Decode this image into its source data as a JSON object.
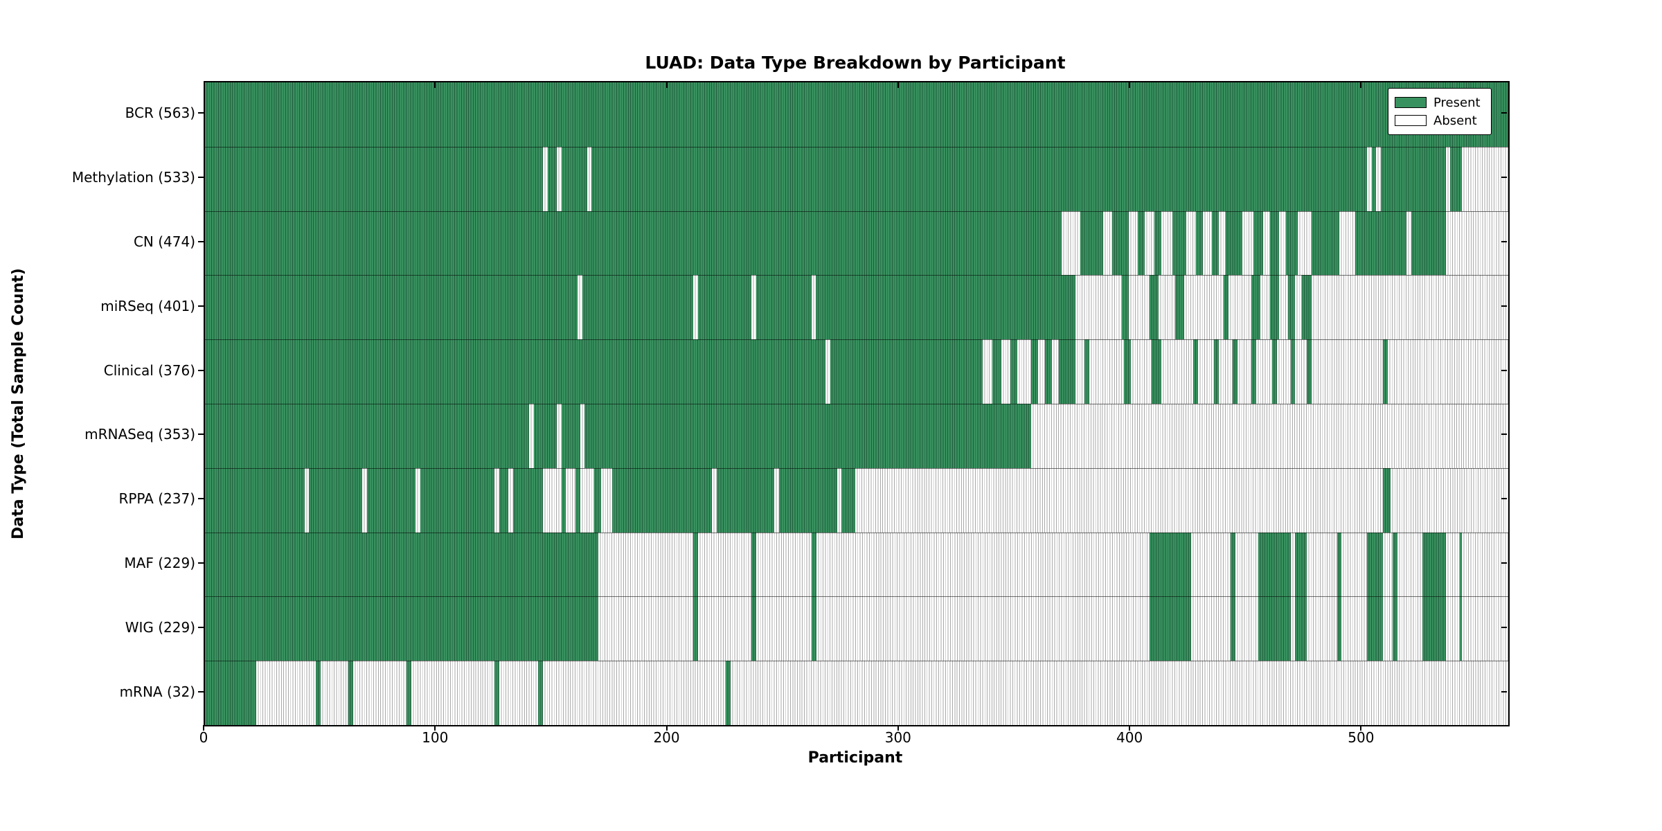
{
  "title": "LUAD: Data Type Breakdown by Participant",
  "x_axis": {
    "label": "Participant",
    "ticks": [
      0,
      100,
      200,
      300,
      400,
      500
    ],
    "min": 0,
    "max": 563
  },
  "y_axis": {
    "label": "Data Type (Total Sample Count)"
  },
  "legend": {
    "items": [
      {
        "label": "Present",
        "color": "#38925f"
      },
      {
        "label": "Absent",
        "color": "#ffffff"
      }
    ]
  },
  "colors": {
    "present_fill": "#38925f",
    "present_edge": "#215c3c",
    "absent_fill": "#ffffff",
    "absent_edge": "#a8a8a8",
    "spine": "#000000",
    "background": "#ffffff"
  },
  "chart_data": {
    "type": "heatmap",
    "title": "LUAD: Data Type Breakdown by Participant",
    "xlabel": "Participant",
    "ylabel": "Data Type (Total Sample Count)",
    "x_range": [
      0,
      563
    ],
    "x_ticks": [
      0,
      100,
      200,
      300,
      400,
      500
    ],
    "n_participants": 563,
    "legend": [
      "Present",
      "Absent"
    ],
    "legend_position": "upper right",
    "rows": [
      {
        "data_type": "BCR",
        "total_samples": 563,
        "tick_label": "BCR (563)",
        "absent_ranges": []
      },
      {
        "data_type": "Methylation",
        "total_samples": 533,
        "tick_label": "Methylation (533)",
        "absent_ranges": [
          [
            146,
            148
          ],
          [
            152,
            154
          ],
          [
            165,
            167
          ],
          [
            502,
            504
          ],
          [
            506,
            508
          ],
          [
            536,
            538
          ],
          [
            543,
            563
          ]
        ]
      },
      {
        "data_type": "CN",
        "total_samples": 474,
        "tick_label": "CN (474)",
        "absent_ranges": [
          [
            370,
            378
          ],
          [
            388,
            392
          ],
          [
            399,
            403
          ],
          [
            406,
            410
          ],
          [
            413,
            418
          ],
          [
            424,
            428
          ],
          [
            431,
            435
          ],
          [
            438,
            441
          ],
          [
            448,
            453
          ],
          [
            457,
            460
          ],
          [
            464,
            467
          ],
          [
            472,
            478
          ],
          [
            490,
            497
          ],
          [
            519,
            521
          ],
          [
            536,
            563
          ]
        ]
      },
      {
        "data_type": "miRSeq",
        "total_samples": 401,
        "tick_label": "miRSeq (401)",
        "absent_ranges": [
          [
            161,
            163
          ],
          [
            211,
            213
          ],
          [
            236,
            238
          ],
          [
            262,
            264
          ],
          [
            376,
            396
          ],
          [
            399,
            408
          ],
          [
            412,
            419
          ],
          [
            423,
            440
          ],
          [
            442,
            452
          ],
          [
            456,
            460
          ],
          [
            464,
            468
          ],
          [
            471,
            474
          ],
          [
            478,
            563
          ]
        ]
      },
      {
        "data_type": "Clinical",
        "total_samples": 376,
        "tick_label": "Clinical (376)",
        "absent_ranges": [
          [
            268,
            270
          ],
          [
            336,
            340
          ],
          [
            344,
            348
          ],
          [
            351,
            357
          ],
          [
            360,
            363
          ],
          [
            366,
            369
          ],
          [
            376,
            380
          ],
          [
            382,
            397
          ],
          [
            400,
            409
          ],
          [
            413,
            427
          ],
          [
            429,
            436
          ],
          [
            438,
            444
          ],
          [
            446,
            452
          ],
          [
            454,
            461
          ],
          [
            463,
            469
          ],
          [
            471,
            476
          ],
          [
            478,
            509
          ],
          [
            511,
            563
          ]
        ]
      },
      {
        "data_type": "mRNASeq",
        "total_samples": 353,
        "tick_label": "mRNASeq (353)",
        "absent_ranges": [
          [
            140,
            142
          ],
          [
            152,
            154
          ],
          [
            162,
            164
          ],
          [
            357,
            563
          ]
        ]
      },
      {
        "data_type": "RPPA",
        "total_samples": 237,
        "tick_label": "RPPA (237)",
        "absent_ranges": [
          [
            43,
            45
          ],
          [
            68,
            70
          ],
          [
            91,
            93
          ],
          [
            125,
            127
          ],
          [
            131,
            133
          ],
          [
            146,
            154
          ],
          [
            156,
            160
          ],
          [
            162,
            168
          ],
          [
            171,
            176
          ],
          [
            219,
            221
          ],
          [
            246,
            248
          ],
          [
            273,
            275
          ],
          [
            281,
            509
          ],
          [
            512,
            563
          ]
        ]
      },
      {
        "data_type": "MAF",
        "total_samples": 229,
        "tick_label": "MAF (229)",
        "absent_ranges": [
          [
            170,
            211
          ],
          [
            213,
            236
          ],
          [
            238,
            262
          ],
          [
            264,
            408
          ],
          [
            426,
            443
          ],
          [
            445,
            455
          ],
          [
            469,
            471
          ],
          [
            476,
            489
          ],
          [
            491,
            502
          ],
          [
            509,
            513
          ],
          [
            515,
            526
          ],
          [
            536,
            542
          ],
          [
            543,
            563
          ]
        ]
      },
      {
        "data_type": "WIG",
        "total_samples": 229,
        "tick_label": "WIG (229)",
        "absent_ranges": [
          [
            170,
            211
          ],
          [
            213,
            236
          ],
          [
            238,
            262
          ],
          [
            264,
            408
          ],
          [
            426,
            443
          ],
          [
            445,
            455
          ],
          [
            469,
            471
          ],
          [
            476,
            489
          ],
          [
            491,
            502
          ],
          [
            509,
            513
          ],
          [
            515,
            526
          ],
          [
            536,
            542
          ],
          [
            543,
            563
          ]
        ]
      },
      {
        "data_type": "mRNA",
        "total_samples": 32,
        "tick_label": "mRNA (32)",
        "absent_ranges": [
          [
            22,
            48
          ],
          [
            50,
            62
          ],
          [
            64,
            87
          ],
          [
            89,
            125
          ],
          [
            127,
            144
          ],
          [
            146,
            225
          ],
          [
            227,
            563
          ]
        ]
      }
    ]
  }
}
